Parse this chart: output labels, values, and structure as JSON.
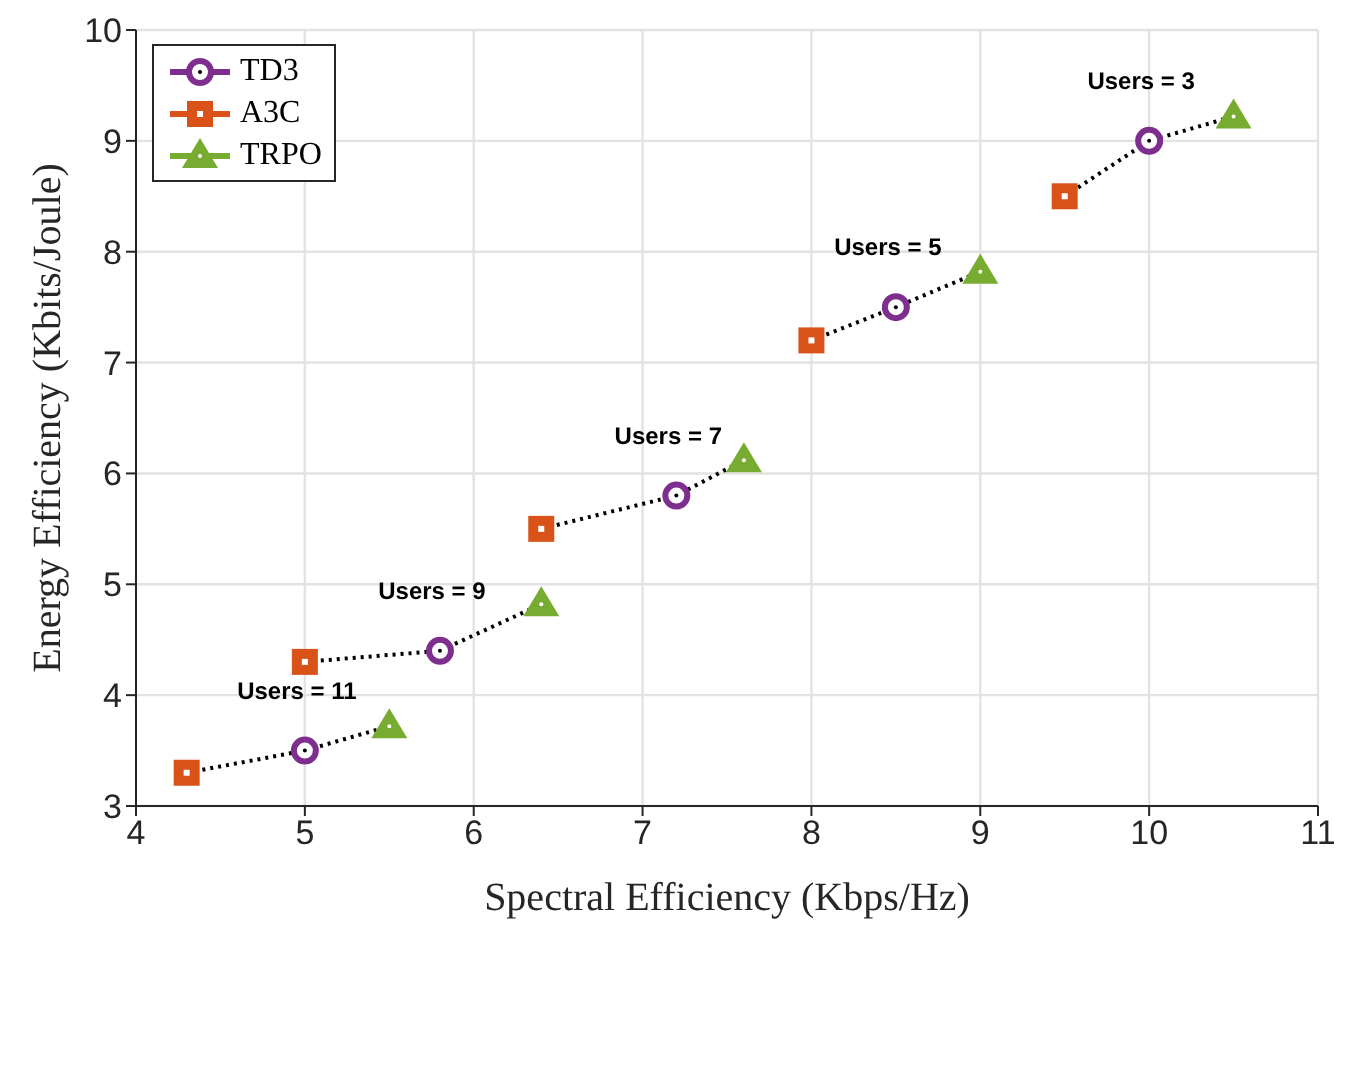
{
  "chart_data": {
    "type": "scatter",
    "xlabel": "Spectral Efficiency (Kbps/Hz)",
    "ylabel": "Energy Efficiency (Kbits/Joule)",
    "xlim": [
      4,
      11
    ],
    "xticks": [
      4,
      5,
      6,
      7,
      8,
      9,
      10,
      11
    ],
    "ylim": [
      3,
      10
    ],
    "yticks": [
      3,
      4,
      5,
      6,
      7,
      8,
      9,
      10
    ],
    "grid": true,
    "legend": "top left",
    "series": [
      {
        "type": "line",
        "color": "#000000",
        "line_style": "dotted",
        "marker": "none",
        "x": [
          4.3,
          5,
          5.5
        ],
        "values": [
          3.3,
          3.5,
          3.72
        ]
      },
      {
        "type": "line",
        "color": "#000000",
        "line_style": "dotted",
        "marker": "none",
        "x": [
          5,
          5.8,
          6.4
        ],
        "values": [
          4.3,
          4.4,
          4.82
        ]
      },
      {
        "type": "line",
        "color": "#000000",
        "line_style": "dotted",
        "marker": "none",
        "x": [
          6.4,
          7.2,
          7.6
        ],
        "values": [
          5.5,
          5.8,
          6.12
        ]
      },
      {
        "type": "line",
        "color": "#000000",
        "line_style": "dotted",
        "marker": "none",
        "x": [
          8,
          8.5,
          9
        ],
        "values": [
          7.2,
          7.5,
          7.82
        ]
      },
      {
        "type": "line",
        "color": "#000000",
        "line_style": "dotted",
        "marker": "none",
        "x": [
          9.5,
          10,
          10.5
        ],
        "values": [
          8.5,
          9,
          9.22
        ]
      },
      {
        "name": "TD3",
        "color": "#7e2f8e",
        "marker": "circle",
        "x": [
          5,
          5.8,
          7.2,
          8.5,
          10
        ],
        "values": [
          3.5,
          4.4,
          5.8,
          7.5,
          9
        ]
      },
      {
        "name": "A3C",
        "color": "#d95319",
        "marker": "square",
        "x": [
          4.3,
          5,
          6.4,
          8,
          9.5
        ],
        "values": [
          3.3,
          4.3,
          5.5,
          7.2,
          8.5
        ]
      },
      {
        "name": "TRPO",
        "color": "#77ac30",
        "marker": "triangle",
        "x": [
          5.5,
          6.4,
          7.6,
          9,
          10.5
        ],
        "values": [
          3.72,
          4.82,
          6.12,
          7.82,
          9.22
        ]
      }
    ],
    "annotations": [
      "Users = 11",
      "Users = 9",
      "Users = 7",
      "Users = 5",
      "Users = 3"
    ]
  }
}
